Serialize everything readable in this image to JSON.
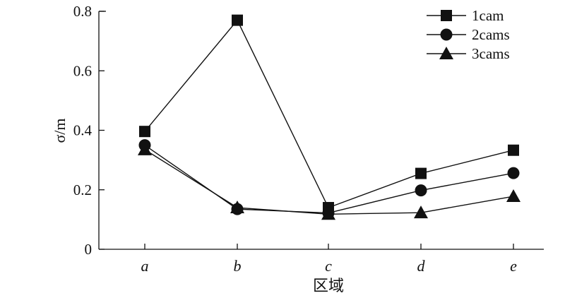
{
  "chart_data": {
    "type": "line",
    "categories": [
      "a",
      "b",
      "c",
      "d",
      "e"
    ],
    "series": [
      {
        "name": "1cam",
        "marker": "square",
        "values": [
          0.396,
          0.77,
          0.14,
          0.255,
          0.333
        ]
      },
      {
        "name": "2cams",
        "marker": "circle",
        "values": [
          0.35,
          0.135,
          0.122,
          0.198,
          0.256
        ]
      },
      {
        "name": "3cams",
        "marker": "triangle",
        "values": [
          0.335,
          0.14,
          0.118,
          0.123,
          0.178
        ]
      }
    ],
    "xlabel": "区域",
    "ylabel": "σ/m",
    "ylim": [
      0,
      0.8
    ],
    "yticks": [
      "0",
      "0.2",
      "0.4",
      "0.6",
      "0.8"
    ],
    "grid": false,
    "legend_position": "top-right",
    "color": "#111111"
  }
}
